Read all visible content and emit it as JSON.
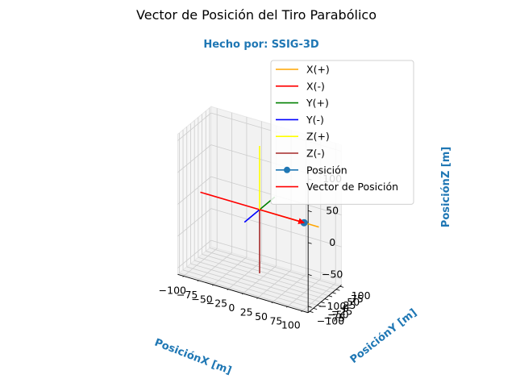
{
  "chart_data": {
    "type": "line",
    "projection": "3d",
    "title": "Vector de Posición del Tiro Parabólico",
    "subtitle": "Hecho por: SSIG-3D",
    "xlabel": "PosiciónX [m]",
    "ylabel": "PosiciónY [m]",
    "zlabel": "PosiciónZ [m]",
    "xlim": [
      -110,
      110
    ],
    "ylim": [
      -110,
      110
    ],
    "zlim": [
      -110,
      110
    ],
    "x_ticks": [
      "−100",
      "−75",
      "−50",
      "−25",
      "0",
      "25",
      "50",
      "75",
      "100"
    ],
    "y_ticks": [
      "−100",
      "−75",
      "−50",
      "−25",
      "0",
      "25",
      "50",
      "75",
      "100"
    ],
    "z_ticks": [
      "−100",
      "−50",
      "0",
      "50",
      "100"
    ],
    "grid": true,
    "legend_position": "top-right",
    "label_color": "#1f77b4",
    "series": [
      {
        "name": "X(+)",
        "color": "#ffa500",
        "marker": false,
        "points": [
          [
            0,
            0,
            0
          ],
          [
            100,
            0,
            0
          ]
        ]
      },
      {
        "name": "X(-)",
        "color": "#ff0000",
        "marker": false,
        "points": [
          [
            0,
            0,
            0
          ],
          [
            -100,
            0,
            0
          ]
        ]
      },
      {
        "name": "Y(+)",
        "color": "#008000",
        "marker": false,
        "points": [
          [
            0,
            0,
            0
          ],
          [
            0,
            100,
            0
          ]
        ]
      },
      {
        "name": "Y(-)",
        "color": "#0000ff",
        "marker": false,
        "points": [
          [
            0,
            0,
            0
          ],
          [
            0,
            -100,
            0
          ]
        ]
      },
      {
        "name": "Z(+)",
        "color": "#ffff00",
        "marker": false,
        "points": [
          [
            0,
            0,
            0
          ],
          [
            0,
            0,
            100
          ]
        ]
      },
      {
        "name": "Z(-)",
        "color": "#a52a2a",
        "marker": false,
        "points": [
          [
            0,
            0,
            0
          ],
          [
            0,
            0,
            -100
          ]
        ]
      },
      {
        "name": "Posición",
        "color": "#1f77b4",
        "marker": true,
        "points": [
          [
            75,
            0,
            0
          ]
        ]
      },
      {
        "name": "Vector de Posición",
        "color": "#ff0000",
        "marker": false,
        "arrow": true,
        "points": [
          [
            0,
            0,
            0
          ],
          [
            75,
            0,
            0
          ]
        ]
      }
    ]
  }
}
